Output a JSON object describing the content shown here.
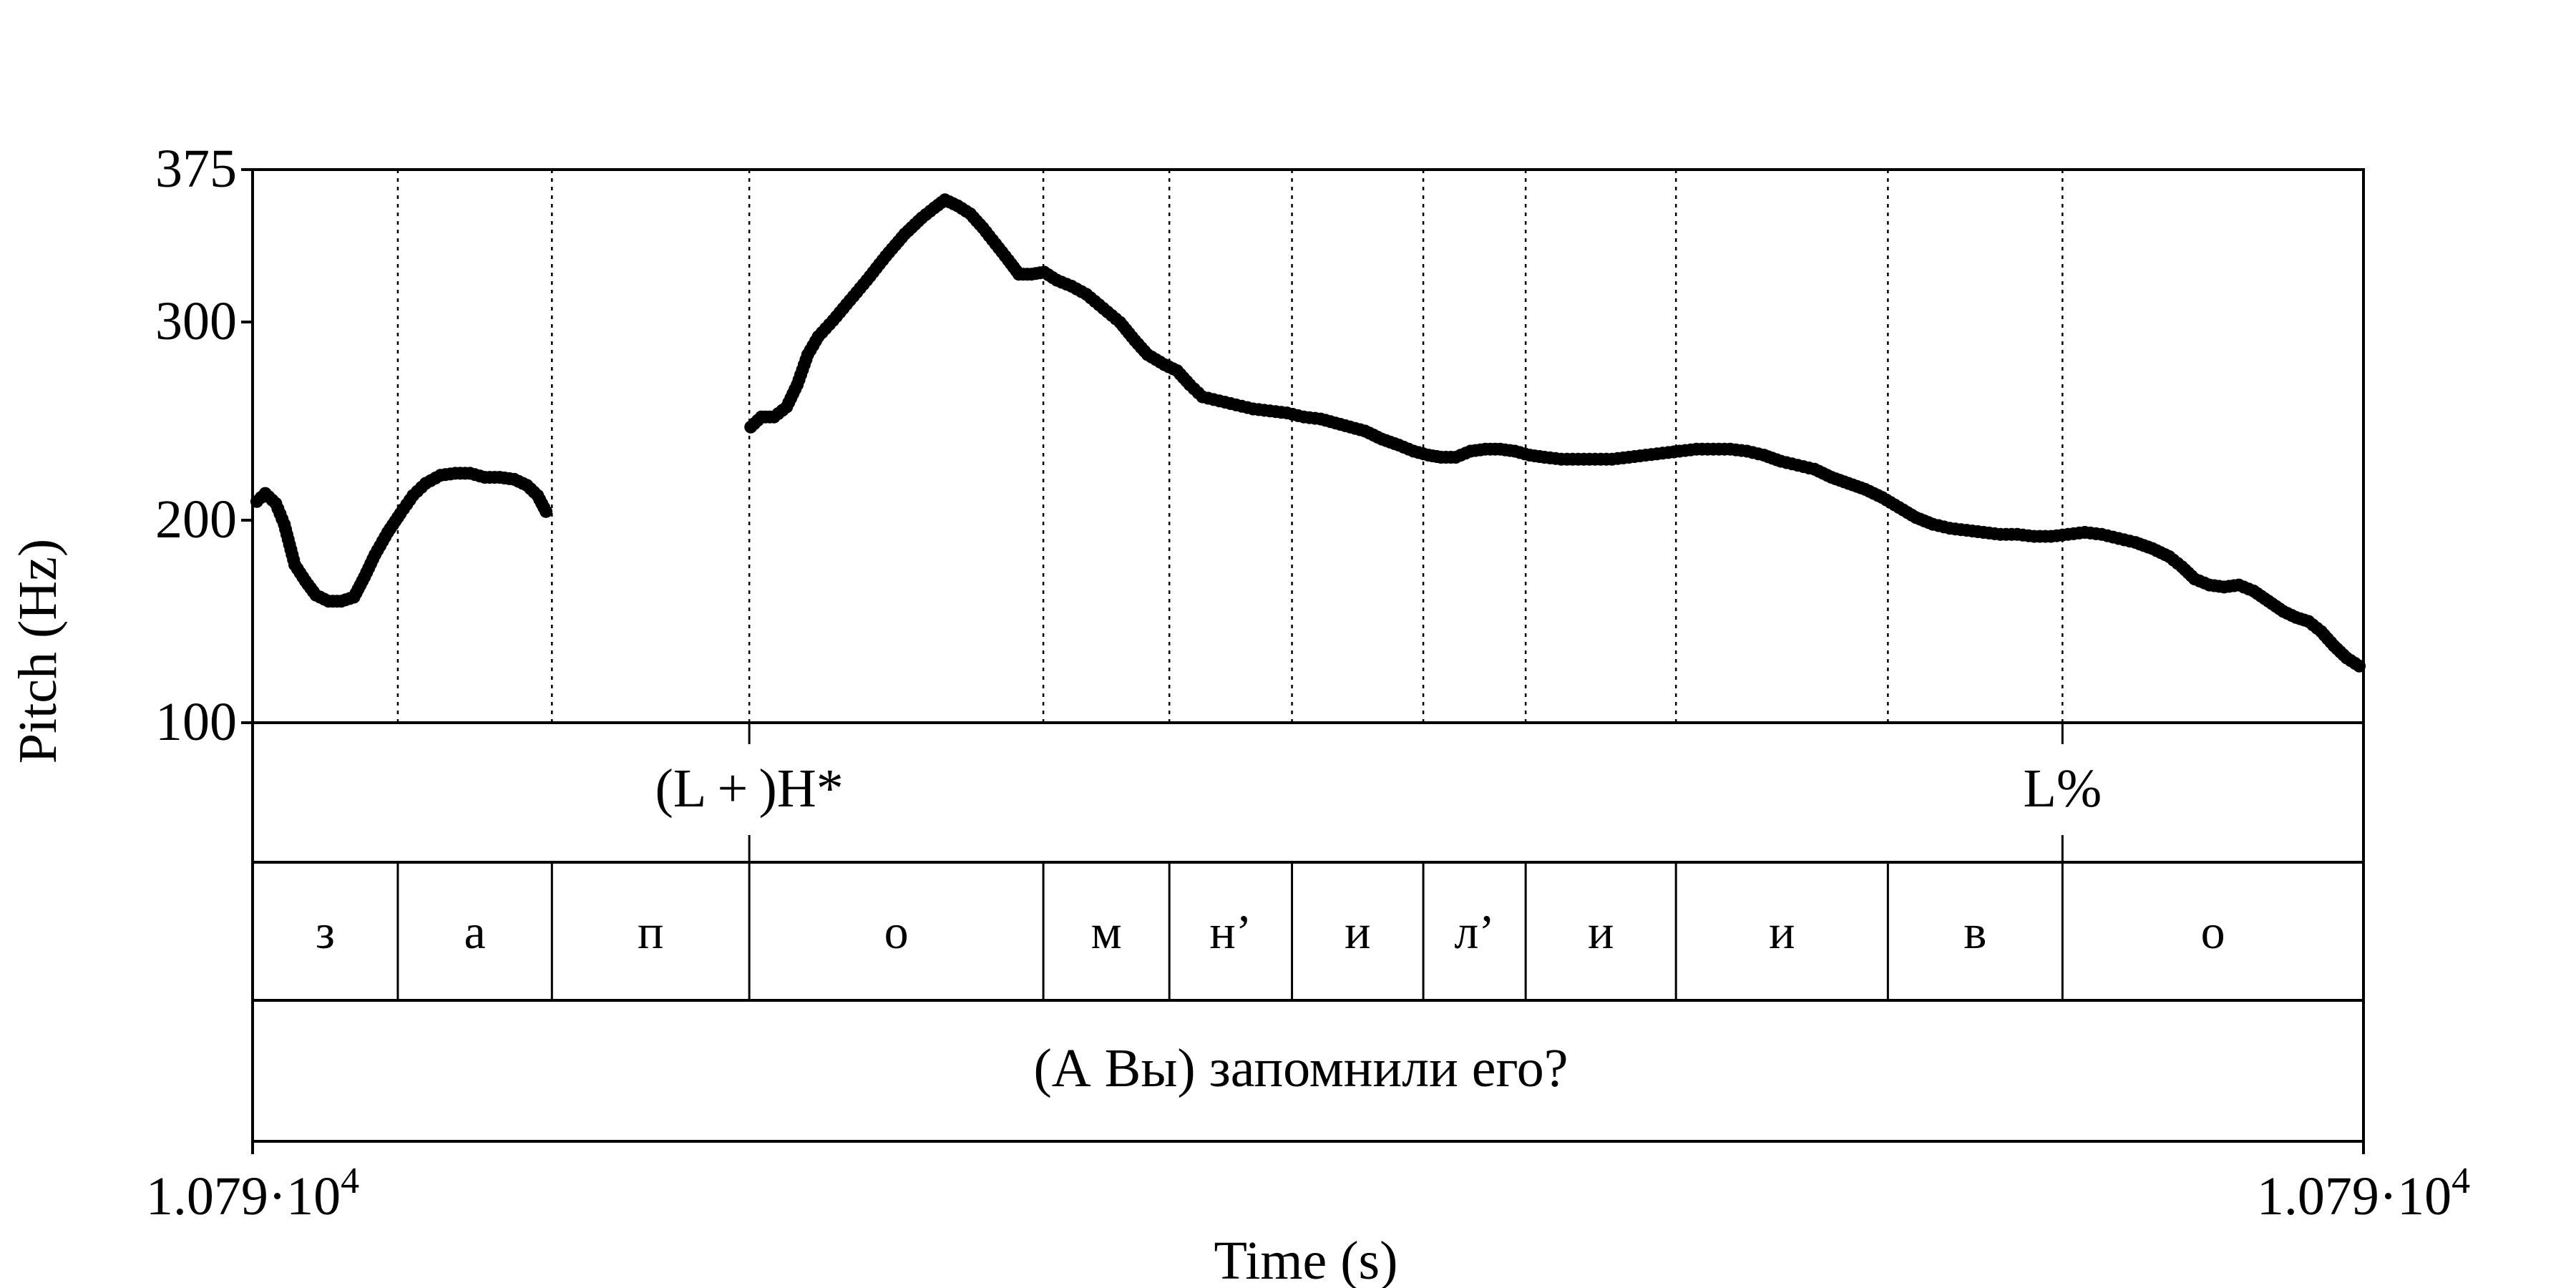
{
  "chart_data": {
    "type": "scatter",
    "title": "",
    "xlabel": "Time (s)",
    "ylabel": "Pitch (Hz)",
    "ylim": [
      100,
      375
    ],
    "y_ticks": [
      "375",
      "300",
      "200",
      "100"
    ],
    "y_tick_values": [
      375,
      300,
      200,
      100
    ],
    "x_ticks": [
      {
        "mantissa": "1.079·10",
        "exp": "4"
      },
      {
        "mantissa": "1.079·10",
        "exp": "4"
      }
    ],
    "x_range_fraction": [
      0,
      1
    ],
    "segment_boundaries": [
      0.0688,
      0.1418,
      0.2353,
      0.3746,
      0.4343,
      0.4924,
      0.5546,
      0.6031,
      0.6743,
      0.7747,
      0.8574
    ],
    "tiers": {
      "tones": [
        {
          "label": "(L + )H*",
          "t": 0.2353
        },
        {
          "label": "L%",
          "t": 0.8574
        }
      ],
      "segments": [
        "з",
        "а",
        "п",
        "о",
        "м",
        "н’",
        "и",
        "л’",
        "и",
        "и",
        "в",
        "о"
      ],
      "sentence": "(А Вы) запомнили его?"
    },
    "series": [
      {
        "points_t_hz": [
          [
            0.002,
            210
          ],
          [
            0.006,
            214
          ],
          [
            0.011,
            209
          ],
          [
            0.015,
            198
          ],
          [
            0.02,
            178
          ],
          [
            0.025,
            170
          ],
          [
            0.03,
            163
          ],
          [
            0.036,
            160
          ],
          [
            0.042,
            160
          ],
          [
            0.048,
            162
          ],
          [
            0.053,
            172
          ],
          [
            0.058,
            183
          ],
          [
            0.064,
            194
          ],
          [
            0.07,
            204
          ],
          [
            0.076,
            213
          ],
          [
            0.082,
            219
          ],
          [
            0.089,
            223
          ],
          [
            0.096,
            224
          ],
          [
            0.103,
            224
          ],
          [
            0.11,
            222
          ],
          [
            0.117,
            222
          ],
          [
            0.124,
            221
          ],
          [
            0.13,
            218
          ],
          [
            0.135,
            213
          ],
          [
            0.139,
            205
          ]
        ]
      },
      {
        "points_t_hz": [
          [
            0.236,
            247
          ],
          [
            0.241,
            252
          ],
          [
            0.247,
            252
          ],
          [
            0.253,
            257
          ],
          [
            0.258,
            268
          ],
          [
            0.263,
            283
          ],
          [
            0.268,
            292
          ],
          [
            0.275,
            300
          ],
          [
            0.283,
            310
          ],
          [
            0.291,
            320
          ],
          [
            0.3,
            332
          ],
          [
            0.309,
            343
          ],
          [
            0.317,
            351
          ],
          [
            0.323,
            356
          ],
          [
            0.328,
            360
          ],
          [
            0.334,
            357
          ],
          [
            0.34,
            353
          ],
          [
            0.346,
            346
          ],
          [
            0.352,
            338
          ],
          [
            0.358,
            330
          ],
          [
            0.363,
            323
          ],
          [
            0.369,
            323
          ],
          [
            0.375,
            324
          ],
          [
            0.381,
            320
          ],
          [
            0.388,
            317
          ],
          [
            0.395,
            313
          ],
          [
            0.403,
            306
          ],
          [
            0.411,
            299
          ],
          [
            0.418,
            290
          ],
          [
            0.424,
            283
          ],
          [
            0.432,
            278
          ],
          [
            0.438,
            275
          ],
          [
            0.444,
            268
          ],
          [
            0.45,
            262
          ],
          [
            0.458,
            260
          ],
          [
            0.466,
            258
          ],
          [
            0.474,
            256
          ],
          [
            0.482,
            255
          ],
          [
            0.49,
            254
          ],
          [
            0.498,
            252
          ],
          [
            0.506,
            251
          ],
          [
            0.513,
            249
          ],
          [
            0.52,
            247
          ],
          [
            0.527,
            245
          ],
          [
            0.535,
            241
          ],
          [
            0.543,
            238
          ],
          [
            0.55,
            235
          ],
          [
            0.557,
            233
          ],
          [
            0.563,
            232
          ],
          [
            0.57,
            232
          ],
          [
            0.577,
            235
          ],
          [
            0.584,
            236
          ],
          [
            0.591,
            236
          ],
          [
            0.598,
            235
          ],
          [
            0.605,
            233
          ],
          [
            0.612,
            232
          ],
          [
            0.62,
            231
          ],
          [
            0.628,
            231
          ],
          [
            0.636,
            231
          ],
          [
            0.644,
            231
          ],
          [
            0.652,
            232
          ],
          [
            0.66,
            233
          ],
          [
            0.668,
            234
          ],
          [
            0.676,
            235
          ],
          [
            0.684,
            236
          ],
          [
            0.692,
            236
          ],
          [
            0.7,
            236
          ],
          [
            0.708,
            235
          ],
          [
            0.716,
            233
          ],
          [
            0.724,
            230
          ],
          [
            0.732,
            228
          ],
          [
            0.74,
            226
          ],
          [
            0.748,
            222
          ],
          [
            0.756,
            219
          ],
          [
            0.764,
            216
          ],
          [
            0.772,
            212
          ],
          [
            0.78,
            207
          ],
          [
            0.788,
            202
          ],
          [
            0.796,
            198
          ],
          [
            0.804,
            196
          ],
          [
            0.812,
            195
          ],
          [
            0.82,
            194
          ],
          [
            0.828,
            193
          ],
          [
            0.836,
            193
          ],
          [
            0.844,
            192
          ],
          [
            0.852,
            192
          ],
          [
            0.86,
            193
          ],
          [
            0.868,
            194
          ],
          [
            0.876,
            193
          ],
          [
            0.884,
            191
          ],
          [
            0.892,
            189
          ],
          [
            0.9,
            186
          ],
          [
            0.908,
            182
          ],
          [
            0.914,
            177
          ],
          [
            0.92,
            171
          ],
          [
            0.927,
            168
          ],
          [
            0.934,
            167
          ],
          [
            0.941,
            168
          ],
          [
            0.948,
            165
          ],
          [
            0.955,
            160
          ],
          [
            0.962,
            155
          ],
          [
            0.968,
            152
          ],
          [
            0.974,
            150
          ],
          [
            0.98,
            145
          ],
          [
            0.986,
            138
          ],
          [
            0.992,
            132
          ],
          [
            0.998,
            128
          ]
        ]
      }
    ]
  }
}
